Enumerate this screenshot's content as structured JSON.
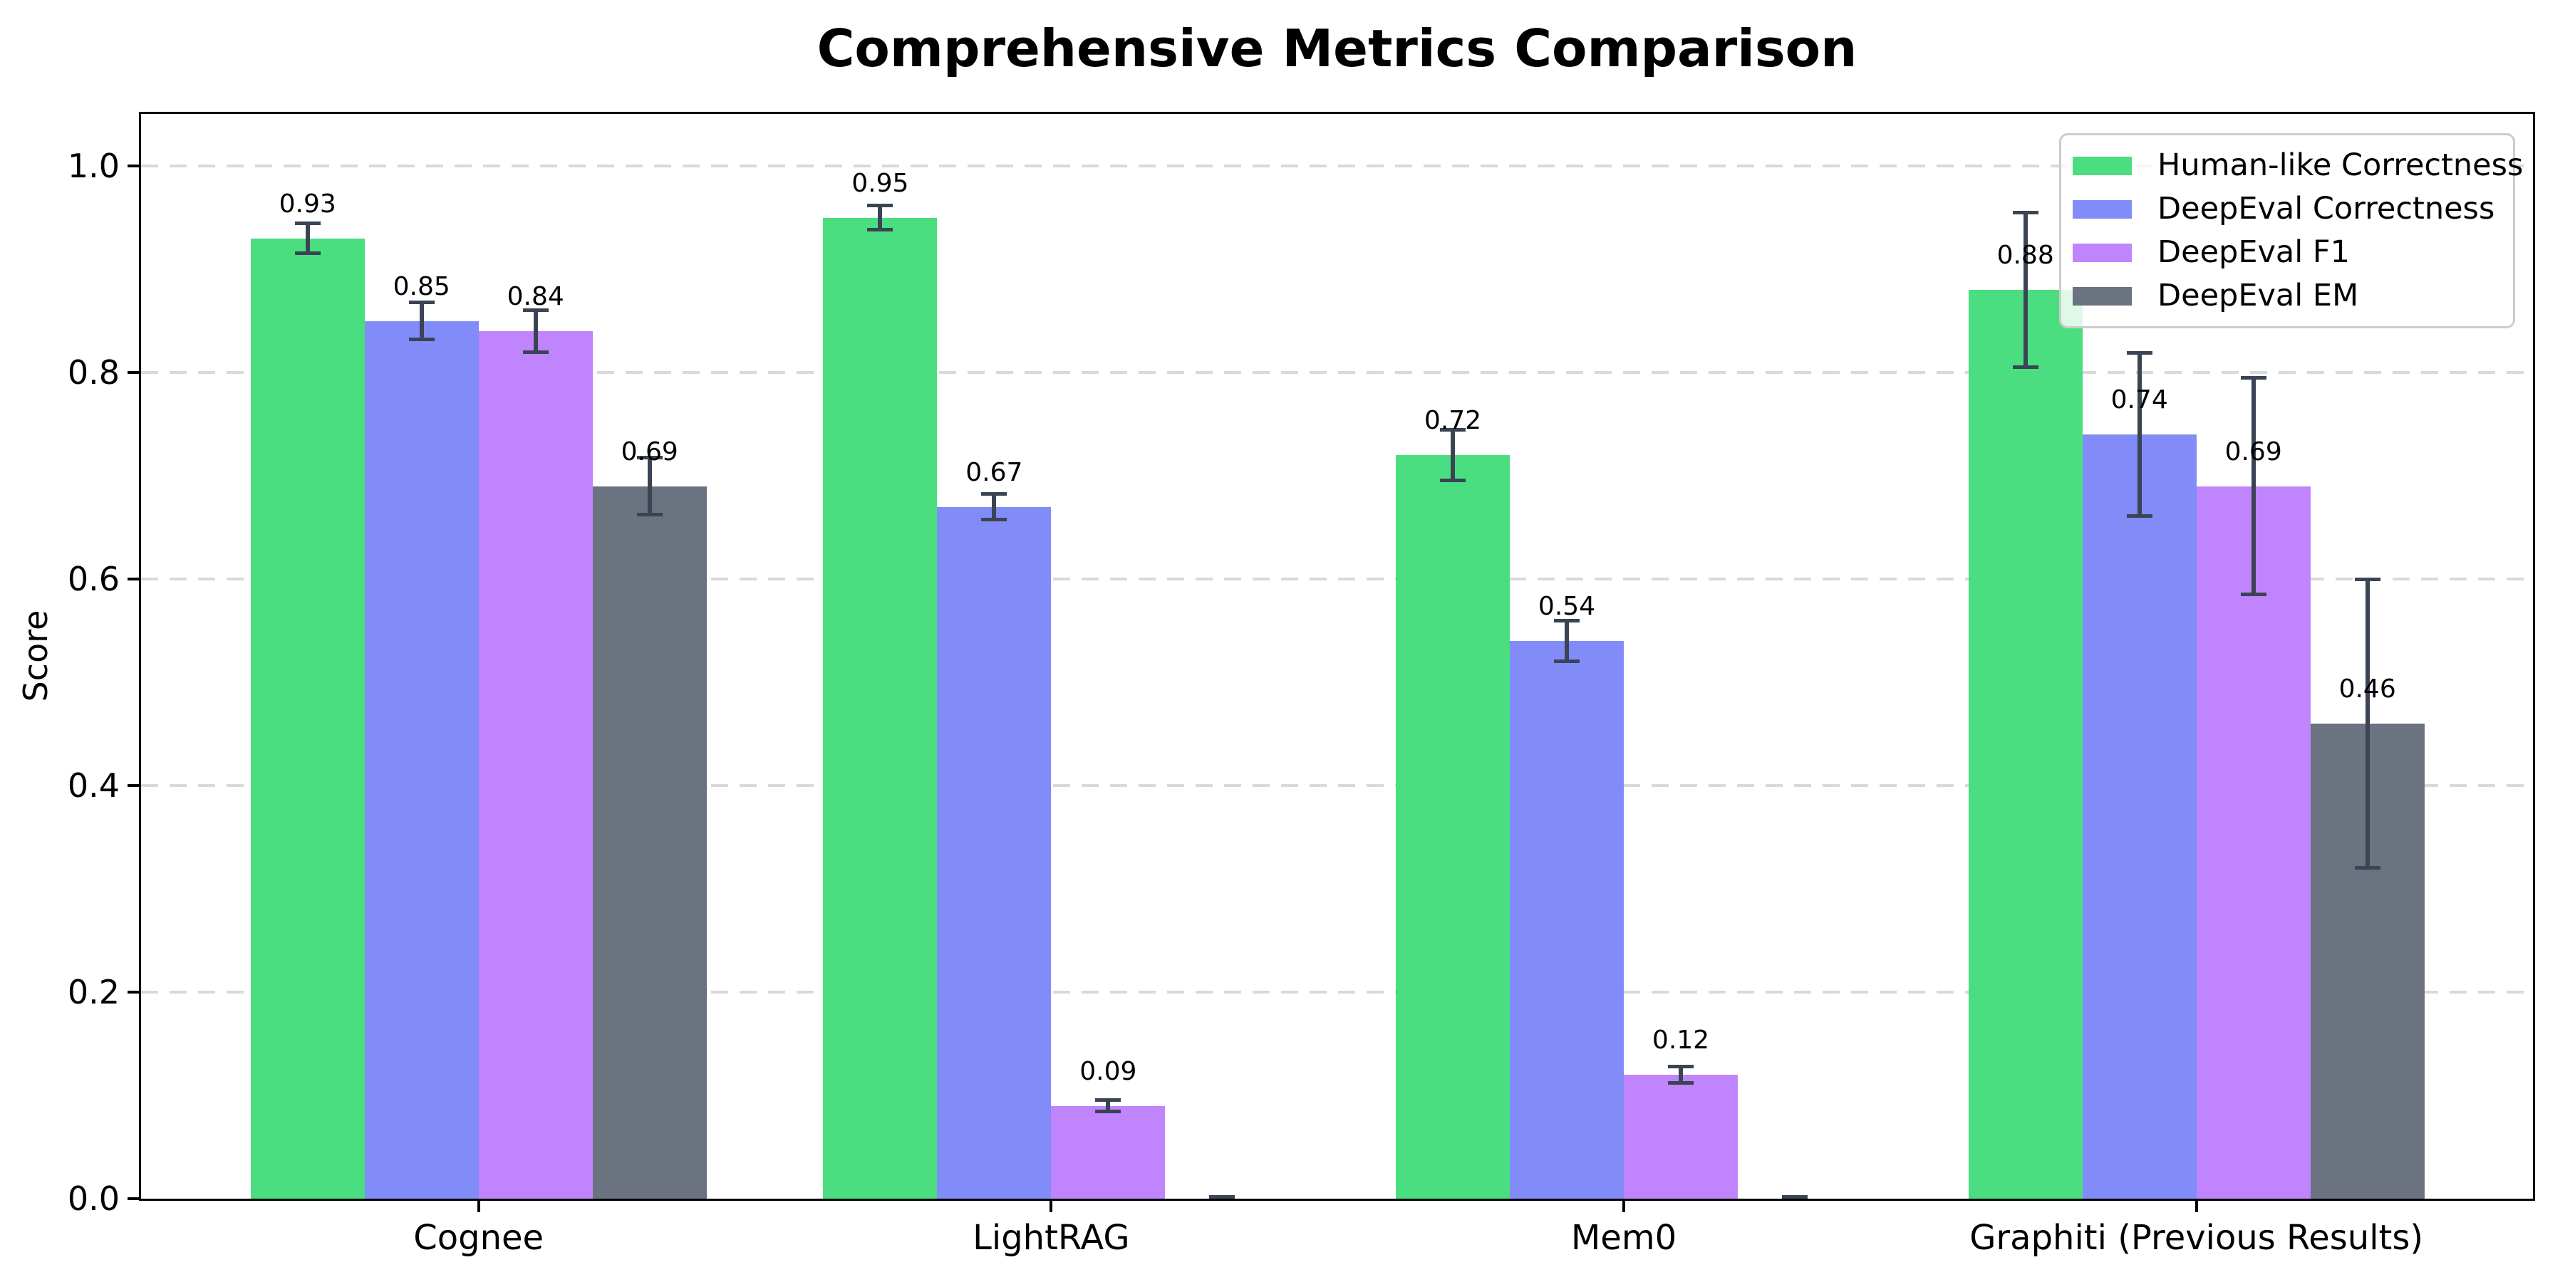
{
  "chart_data": {
    "type": "bar",
    "title": "Comprehensive Metrics Comparison",
    "ylabel": "Score",
    "xlabel": "",
    "categories": [
      "Cognee",
      "LightRAG",
      "Mem0",
      "Graphiti (Previous Results)"
    ],
    "series": [
      {
        "name": "Human-like Correctness",
        "color": "#4ade80",
        "values": [
          0.93,
          0.95,
          0.72,
          0.88
        ],
        "errors": [
          0.015,
          0.012,
          0.025,
          0.075
        ],
        "labels": [
          "0.93",
          "0.95",
          "0.72",
          "0.88"
        ]
      },
      {
        "name": "DeepEval Correctness",
        "color": "#818cf8",
        "values": [
          0.85,
          0.67,
          0.54,
          0.74
        ],
        "errors": [
          0.018,
          0.013,
          0.02,
          0.079
        ],
        "labels": [
          "0.85",
          "0.67",
          "0.54",
          "0.74"
        ]
      },
      {
        "name": "DeepEval F1",
        "color": "#c084fc",
        "values": [
          0.84,
          0.09,
          0.12,
          0.69
        ],
        "errors": [
          0.021,
          0.006,
          0.008,
          0.105
        ],
        "labels": [
          "0.84",
          "0.09",
          "0.12",
          "0.69"
        ]
      },
      {
        "name": "DeepEval EM",
        "color": "#6b7280",
        "values": [
          0.69,
          0.0,
          0.0,
          0.46
        ],
        "errors": [
          0.028,
          0.002,
          0.002,
          0.14
        ],
        "labels": [
          "0.69",
          null,
          null,
          "0.46"
        ]
      }
    ],
    "yticks": [
      0.0,
      0.2,
      0.4,
      0.6,
      0.8,
      1.0
    ],
    "ytick_labels": [
      "0.0",
      "0.2",
      "0.4",
      "0.6",
      "0.8",
      "1.0"
    ],
    "ylim": [
      0,
      1.05
    ],
    "grid": "horizontal-dashed",
    "grid_color": "#d9d9d9",
    "errorbar_color": "#3a4454",
    "legend_position": "upper right"
  }
}
